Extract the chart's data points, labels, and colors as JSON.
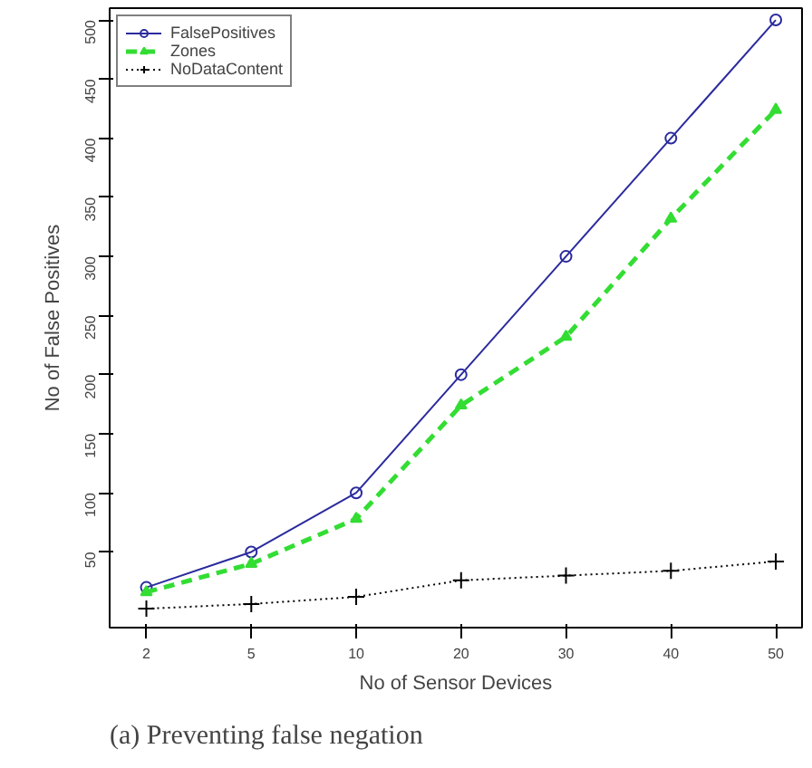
{
  "chart_data": {
    "type": "line",
    "xlabel": "No of Sensor Devices",
    "ylabel": "No of False Positives",
    "categories": [
      "2",
      "5",
      "10",
      "20",
      "30",
      "40",
      "50"
    ],
    "series": [
      {
        "name": "FalsePositives",
        "color": "#2b2b9e",
        "marker": "circle",
        "line_style": "solid",
        "values": [
          20,
          50,
          100,
          200,
          300,
          400,
          500
        ]
      },
      {
        "name": "Zones",
        "color": "#33dd33",
        "marker": "triangle",
        "line_style": "dashed",
        "values": [
          16,
          40,
          78,
          174,
          232,
          332,
          424
        ]
      },
      {
        "name": "NoDataContent",
        "color": "#000000",
        "marker": "cross",
        "line_style": "dotted",
        "values": [
          2,
          6,
          12,
          26,
          30,
          34,
          42
        ]
      }
    ],
    "ylim": [
      -14,
      510
    ],
    "yticks": [
      50,
      100,
      150,
      200,
      250,
      300,
      350,
      400,
      450,
      500
    ],
    "grid": false,
    "legend": "top left",
    "annotations": [
      "(a) Preventing false negation"
    ]
  }
}
